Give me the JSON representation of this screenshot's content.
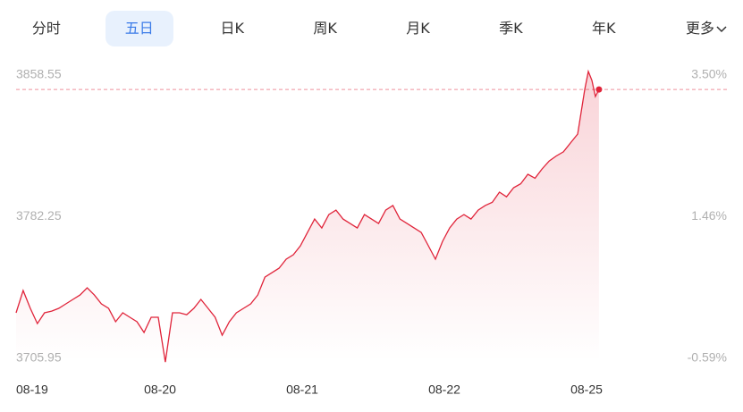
{
  "tabs": [
    "分时",
    "五日",
    "日K",
    "周K",
    "月K",
    "季K",
    "年K",
    "更多"
  ],
  "active_tab": 1,
  "chart_data": {
    "type": "line",
    "x": [
      0,
      1,
      2,
      3,
      4,
      5,
      6,
      7,
      8,
      9,
      10,
      11,
      12,
      13,
      14,
      15,
      16,
      17,
      18,
      19,
      20,
      21,
      22,
      23,
      24,
      25,
      26,
      27,
      28,
      29,
      30,
      31,
      32,
      33,
      34,
      35,
      36,
      37,
      38,
      39,
      40,
      41,
      42,
      43,
      44,
      45,
      46,
      47,
      48,
      49,
      50,
      51,
      52,
      53,
      54,
      55,
      56,
      57,
      58,
      59,
      60,
      61,
      62,
      63,
      64,
      65,
      66,
      67,
      68,
      69,
      70,
      71,
      72,
      73,
      74,
      75,
      76,
      77,
      78,
      79,
      80,
      80.5,
      81,
      81.5,
      82
    ],
    "series": [
      {
        "color": "#e0243a",
        "values": [
          3730.5,
          3742.5,
          3732.9,
          3724.7,
          3730.5,
          3731.4,
          3732.9,
          3735.3,
          3737.7,
          3740.1,
          3744.0,
          3740.1,
          3735.3,
          3732.9,
          3725.7,
          3730.5,
          3728.1,
          3725.7,
          3719.9,
          3728.1,
          3728.1,
          3704.0,
          3730.5,
          3730.5,
          3729.5,
          3732.9,
          3737.7,
          3732.9,
          3728.1,
          3718.4,
          3725.7,
          3730.5,
          3732.9,
          3735.3,
          3740.1,
          3749.7,
          3752.1,
          3754.5,
          3759.4,
          3761.8,
          3766.6,
          3773.8,
          3781.0,
          3776.2,
          3783.4,
          3785.8,
          3781.0,
          3778.6,
          3776.2,
          3783.4,
          3781.0,
          3778.6,
          3785.8,
          3788.3,
          3781.0,
          3778.6,
          3776.2,
          3773.8,
          3766.6,
          3759.4,
          3769.0,
          3776.2,
          3781.0,
          3783.4,
          3781.0,
          3785.8,
          3788.3,
          3790.0,
          3795.5,
          3793.0,
          3797.9,
          3800.0,
          3805.1,
          3803.0,
          3808.0,
          3812.3,
          3815.0,
          3817.2,
          3822.0,
          3826.8,
          3850.8,
          3860.5,
          3855.7,
          3847.0,
          3850.8
        ]
      }
    ],
    "xlim": [
      0,
      100
    ],
    "xticks": [
      {
        "value": 0,
        "label": "08-19"
      },
      {
        "value": 20,
        "label": "08-20"
      },
      {
        "value": 40,
        "label": "08-21"
      },
      {
        "value": 60,
        "label": "08-22"
      },
      {
        "value": 80,
        "label": "08-25"
      }
    ],
    "ylim": [
      3705.95,
      3858.55
    ],
    "yticks": [
      3705.95,
      3782.25,
      3858.55
    ],
    "y2lim": [
      -0.59,
      3.5
    ],
    "y2ticks": [
      {
        "value": -0.59,
        "label": "-0.59%"
      },
      {
        "value": 1.46,
        "label": "1.46%"
      },
      {
        "value": 3.5,
        "label": "3.50%"
      }
    ]
  }
}
